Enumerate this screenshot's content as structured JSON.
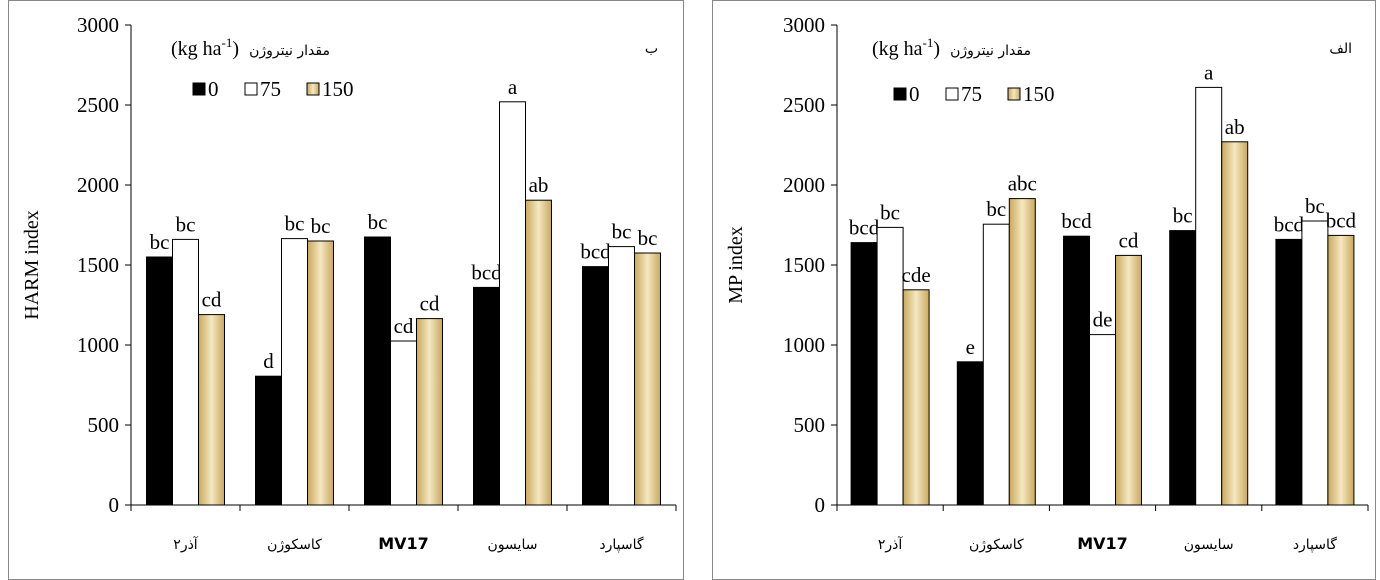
{
  "colors": {
    "n0": "#000000",
    "n75": "#ffffff",
    "n150_light": "#f4e8c4",
    "n150_dark": "#c9a85a"
  },
  "chart_data": [
    {
      "type": "bar",
      "panel_label": "ب",
      "ylabel": "HARM index",
      "ylim": [
        0,
        3000
      ],
      "yticks": [
        "0",
        "500",
        "1000",
        "1500",
        "2000",
        "2500",
        "3000"
      ],
      "ytick_values": [
        0,
        500,
        1000,
        1500,
        2000,
        2500,
        3000
      ],
      "legend_title_fa": "مقدار نیتروژن",
      "legend_title_unit": "(kg ha",
      "legend_title_sup": "-1",
      "legend_title_close": ")",
      "legend_position": "top-left",
      "categories": [
        "آذر۲",
        "کاسکوژن",
        "MV17",
        "سایسون",
        "گاسپارد"
      ],
      "series": [
        {
          "name": "0",
          "values": [
            1550,
            805,
            1675,
            1360,
            1490
          ],
          "letters": [
            "bc",
            "d",
            "bc",
            "bcd",
            "bcd"
          ]
        },
        {
          "name": "75",
          "values": [
            1660,
            1665,
            1025,
            2520,
            1615
          ],
          "letters": [
            "bc",
            "bc",
            "cd",
            "a",
            "bc"
          ]
        },
        {
          "name": "150",
          "values": [
            1190,
            1650,
            1165,
            1905,
            1575
          ],
          "letters": [
            "cd",
            "bc",
            "cd",
            "ab",
            "bc"
          ]
        }
      ]
    },
    {
      "type": "bar",
      "panel_label": "الف",
      "ylabel": "MP index",
      "ylim": [
        0,
        3000
      ],
      "yticks": [
        "0",
        "500",
        "1000",
        "1500",
        "2000",
        "2500",
        "3000"
      ],
      "ytick_values": [
        0,
        500,
        1000,
        1500,
        2000,
        2500,
        3000
      ],
      "legend_title_fa": "مقدار نیتروژن",
      "legend_title_unit": "(kg ha",
      "legend_title_sup": "-1",
      "legend_title_close": ")",
      "legend_position": "top-left",
      "categories": [
        "آذر۲",
        "کاسکوژن",
        "MV17",
        "سایسون",
        "گاسپارد"
      ],
      "series": [
        {
          "name": "0",
          "values": [
            1640,
            895,
            1680,
            1715,
            1660
          ],
          "letters": [
            "bcd",
            "e",
            "bcd",
            "bc",
            "bcd"
          ]
        },
        {
          "name": "75",
          "values": [
            1735,
            1755,
            1065,
            2610,
            1775
          ],
          "letters": [
            "bc",
            "bc",
            "de",
            "a",
            "bc"
          ]
        },
        {
          "name": "150",
          "values": [
            1345,
            1915,
            1560,
            2270,
            1685
          ],
          "letters": [
            "cde",
            "abc",
            "cd",
            "ab",
            "bcd"
          ]
        }
      ]
    }
  ]
}
